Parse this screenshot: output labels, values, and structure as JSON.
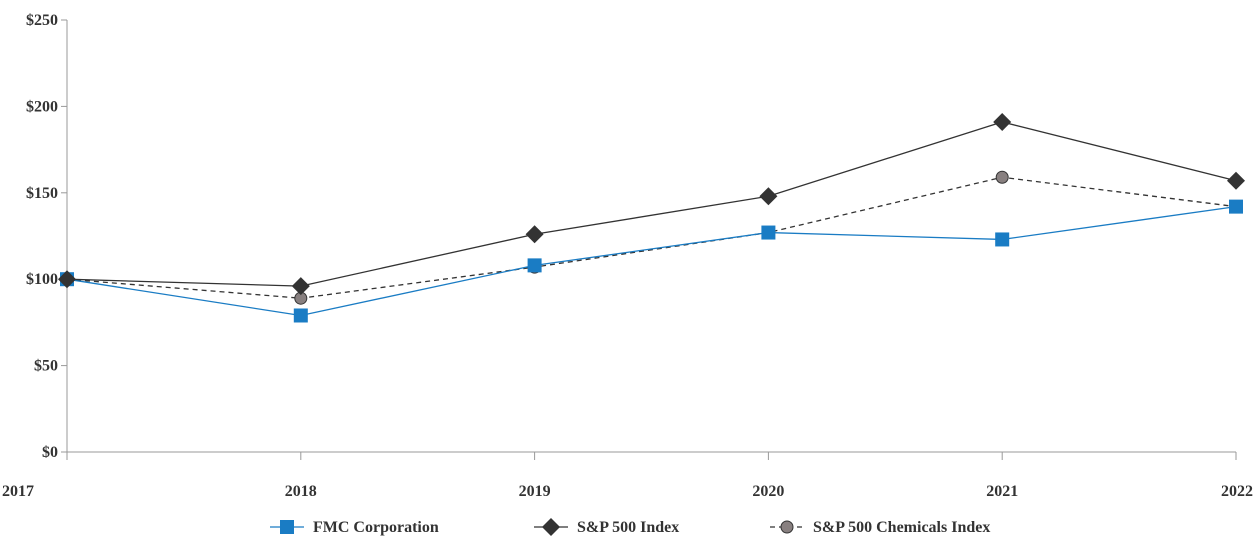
{
  "chart_data": {
    "type": "line",
    "categories": [
      "2017",
      "2018",
      "2019",
      "2020",
      "2021",
      "2022"
    ],
    "y_ticks": [
      "$0",
      "$50",
      "$100",
      "$150",
      "$200",
      "$250"
    ],
    "ylim": [
      0,
      250
    ],
    "grid": false,
    "legend_position": "bottom",
    "series": [
      {
        "name": "FMC Corporation",
        "values": [
          100,
          79,
          108,
          127,
          123,
          142
        ],
        "color": "#1a7cc4",
        "marker": "square",
        "line_style": "solid"
      },
      {
        "name": "S&P 500 Index",
        "values": [
          100,
          96,
          126,
          148,
          191,
          157
        ],
        "color": "#333333",
        "marker": "diamond",
        "line_style": "solid"
      },
      {
        "name": "S&P 500 Chemicals Index",
        "values": [
          100,
          89,
          107,
          127,
          159,
          142
        ],
        "color": "#888080",
        "marker": "circle",
        "line_style": "dashed"
      }
    ]
  }
}
